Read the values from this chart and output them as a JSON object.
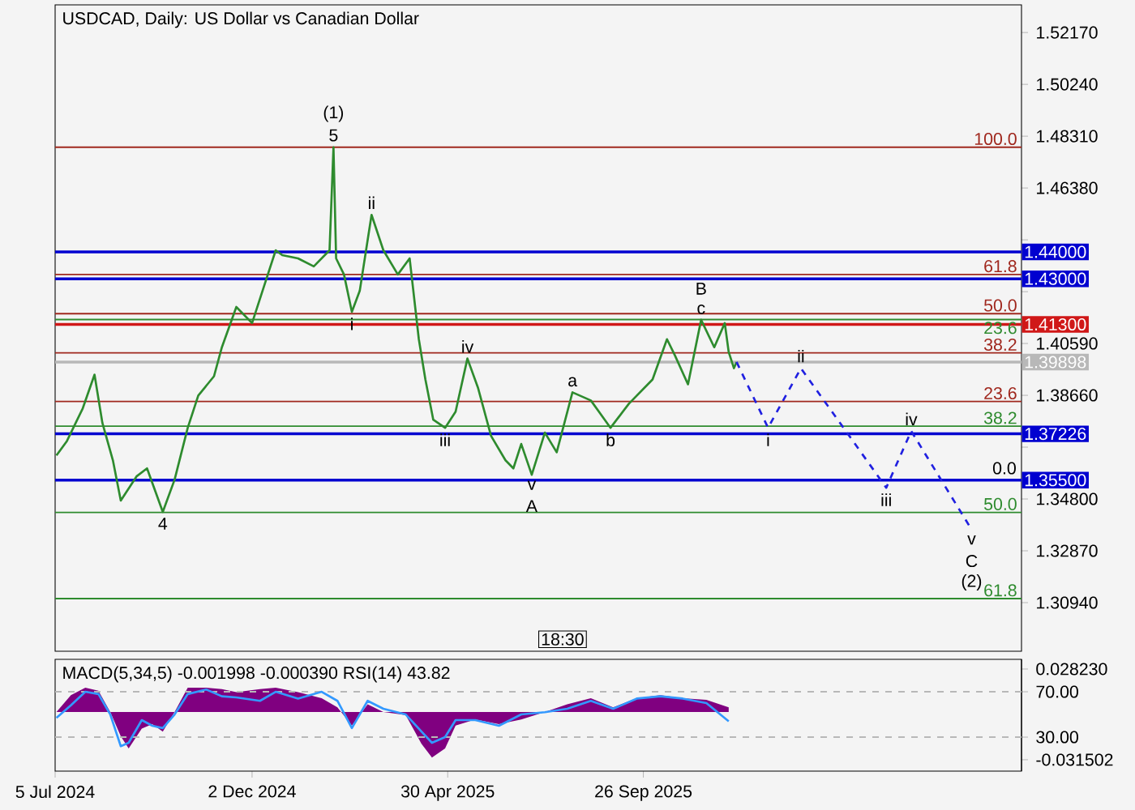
{
  "chart_data": [
    {
      "type": "line",
      "title": "USDCAD, Daily:  US Dollar vs Canadian Dollar",
      "xlim": [
        "2024-07-05",
        "2026-07-11"
      ],
      "ylim": [
        1.2913,
        1.532
      ],
      "yticks": [
        {
          "value": 1.5217,
          "label": "1.52170"
        },
        {
          "value": 1.5024,
          "label": "1.50240"
        },
        {
          "value": 1.4831,
          "label": "1.48310"
        },
        {
          "value": 1.4638,
          "label": "1.46380"
        },
        {
          "value": 1.4445,
          "label": null
        },
        {
          "value": 1.4252,
          "label": null
        },
        {
          "value": 1.4059,
          "label": "1.40590"
        },
        {
          "value": 1.3866,
          "label": "1.38660"
        },
        {
          "value": 1.3673,
          "label": null
        },
        {
          "value": 1.348,
          "label": "1.34800"
        },
        {
          "value": 1.3287,
          "label": "1.32870"
        },
        {
          "value": 1.3094,
          "label": "1.30940"
        }
      ],
      "tick_labels": "y",
      "x": [
        "2024-07-06",
        "2024-07-14",
        "2024-07-26",
        "2024-08-04",
        "2024-08-10",
        "2024-08-18",
        "2024-08-24",
        "2024-09-05",
        "2024-09-13",
        "2024-09-25",
        "2024-10-04",
        "2024-10-14",
        "2024-10-22",
        "2024-11-03",
        "2024-11-09",
        "2024-11-20",
        "2024-12-02",
        "2024-12-14",
        "2024-12-20",
        "2024-12-25",
        "2025-01-06",
        "2025-01-18",
        "2025-01-30",
        "2025-02-02",
        "2025-02-04",
        "2025-02-10",
        "2025-02-16",
        "2025-02-22",
        "2025-03-03",
        "2025-03-12",
        "2025-03-23",
        "2025-04-01",
        "2025-04-08",
        "2025-04-13",
        "2025-04-19",
        "2025-04-28",
        "2025-05-06",
        "2025-05-15",
        "2025-05-23",
        "2025-06-02",
        "2025-06-13",
        "2025-06-19",
        "2025-06-25",
        "2025-07-03",
        "2025-07-13",
        "2025-07-22",
        "2025-08-03",
        "2025-08-17",
        "2025-09-01",
        "2025-09-15",
        "2025-10-03",
        "2025-10-14",
        "2025-10-20",
        "2025-10-30",
        "2025-11-09",
        "2025-11-19",
        "2025-11-27",
        "2025-11-30",
        "2025-12-04",
        "2025-12-06"
      ],
      "series": [
        {
          "color": "#2e8b2e",
          "values": [
            1.3642,
            1.3696,
            1.3817,
            1.3943,
            1.3763,
            1.3624,
            1.3474,
            1.3564,
            1.3594,
            1.3432,
            1.3552,
            1.3745,
            1.3865,
            1.3937,
            1.4045,
            1.4195,
            1.4135,
            1.4316,
            1.4406,
            1.4388,
            1.4376,
            1.4346,
            1.4406,
            1.479,
            1.4376,
            1.4316,
            1.4177,
            1.4255,
            1.4538,
            1.4406,
            1.4316,
            1.4376,
            1.4075,
            1.3925,
            1.3775,
            1.3745,
            1.3805,
            1.4003,
            1.3895,
            1.3715,
            1.3624,
            1.3594,
            1.3685,
            1.357,
            1.3727,
            1.3654,
            1.3877,
            1.3847,
            1.3745,
            1.3835,
            1.3925,
            1.4075,
            1.4015,
            1.3907,
            1.4147,
            1.4045,
            1.4135,
            1.4027,
            1.3967,
            1.399
          ]
        },
        {
          "color": "#2020e0",
          "line_style": "dashed",
          "x": [
            "2025-12-06",
            "2025-12-30",
            "2026-01-24",
            "2026-03-30",
            "2026-04-18",
            "2026-06-03"
          ],
          "values": [
            1.399,
            1.3745,
            1.3967,
            1.3522,
            1.3733,
            1.3366
          ]
        }
      ],
      "ref_lines": [
        {
          "axis": "y",
          "value": 1.479,
          "color": "#a0281e"
        },
        {
          "axis": "y",
          "value": 1.4316,
          "color": "#a0281e"
        },
        {
          "axis": "y",
          "value": 1.417,
          "color": "#a0281e"
        },
        {
          "axis": "y",
          "value": 1.4024,
          "color": "#a0281e"
        },
        {
          "axis": "y",
          "value": 1.3843,
          "color": "#a0281e"
        },
        {
          "axis": "y",
          "value": 1.4148,
          "color": "#2e8b2e"
        },
        {
          "axis": "y",
          "value": 1.3751,
          "color": "#2e8b2e"
        },
        {
          "axis": "y",
          "value": 1.343,
          "color": "#2e8b2e"
        },
        {
          "axis": "y",
          "value": 1.3109,
          "color": "#2e8b2e"
        },
        {
          "axis": "y",
          "value": 1.44,
          "label": "1.44000",
          "color": "#0000d0"
        },
        {
          "axis": "y",
          "value": 1.43,
          "label": "1.43000",
          "color": "#0000d0"
        },
        {
          "axis": "y",
          "value": 1.413,
          "label": "1.41300",
          "color": "#d01818"
        },
        {
          "axis": "y",
          "value": 1.39898,
          "label": "1.39898",
          "color": "#b8b8b8"
        },
        {
          "axis": "y",
          "value": 1.37226,
          "label": "1.37226",
          "color": "#0000d0"
        },
        {
          "axis": "y",
          "value": 1.355,
          "label": "1.35500",
          "color": "#0000d0"
        }
      ],
      "annotations": [
        {
          "text": "5",
          "x": "2025-02-02",
          "y": 1.479
        },
        {
          "text": "(1)",
          "x": "2025-02-02",
          "y": 1.479
        },
        {
          "text": "4",
          "x": "2024-09-25",
          "y": 1.3432
        },
        {
          "text": "i",
          "x": "2025-02-16",
          "y": 1.4177
        },
        {
          "text": "ii",
          "x": "2025-03-03",
          "y": 1.4538
        },
        {
          "text": "iii",
          "x": "2025-04-28",
          "y": 1.3745
        },
        {
          "text": "iv",
          "x": "2025-05-15",
          "y": 1.4003
        },
        {
          "text": "v",
          "x": "2025-07-03",
          "y": 1.357
        },
        {
          "text": "A",
          "x": "2025-07-03",
          "y": 1.357
        },
        {
          "text": "a",
          "x": "2025-08-03",
          "y": 1.3877
        },
        {
          "text": "b",
          "x": "2025-09-01",
          "y": 1.3745
        },
        {
          "text": "c",
          "x": "2025-11-09",
          "y": 1.4147
        },
        {
          "text": "B",
          "x": "2025-11-09",
          "y": 1.4147
        },
        {
          "text": "i",
          "x": "2025-12-30",
          "y": 1.3745
        },
        {
          "text": "ii",
          "x": "2026-01-24",
          "y": 1.3967
        },
        {
          "text": "iii",
          "x": "2026-03-30",
          "y": 1.3522
        },
        {
          "text": "iv",
          "x": "2026-04-18",
          "y": 1.3733
        },
        {
          "text": "v",
          "x": "2026-06-03",
          "y": 1.3366
        },
        {
          "text": "C",
          "x": "2026-06-03",
          "y": 1.3366
        },
        {
          "text": "(2)",
          "x": "2026-06-03",
          "y": 1.3366
        },
        {
          "text": "0.0",
          "x": "2026-06-28",
          "y": 1.355
        },
        "100.0",
        "61.8",
        "50.0",
        "38.2",
        "23.6",
        "23.6",
        "38.2",
        "50.0",
        "61.8",
        "18:30"
      ]
    },
    {
      "type": "area",
      "title": "MACD(5,34,5) -0.001998 -0.000390 RSI(14) 43.82",
      "xlim": [
        "2024-07-05",
        "2026-07-11"
      ],
      "ylim": [
        -0.039,
        0.0346
      ],
      "y2lim": [
        0,
        98.6
      ],
      "xticks": [
        {
          "value": "2024-07-05",
          "label": "5 Jul 2024"
        },
        {
          "value": "2024-12-02",
          "label": "2 Dec 2024"
        },
        {
          "value": "2025-04-30",
          "label": "30 Apr 2025"
        },
        {
          "value": "2025-09-26",
          "label": "26 Sep 2025"
        }
      ],
      "yticks": [
        {
          "value": 0.02823,
          "label": "0.028230"
        },
        {
          "value": -0.031502,
          "label": "-0.031502"
        }
      ],
      "y2ticks": [
        {
          "value": 70,
          "label": "70.00"
        },
        {
          "value": 30,
          "label": "30.00"
        }
      ],
      "x": [
        "2024-07-06",
        "2024-07-17",
        "2024-07-28",
        "2024-08-07",
        "2024-08-16",
        "2024-08-24",
        "2024-08-30",
        "2024-09-09",
        "2024-09-17",
        "2024-09-25",
        "2024-10-04",
        "2024-10-14",
        "2024-10-28",
        "2024-11-09",
        "2024-11-20",
        "2024-12-08",
        "2024-12-20",
        "2025-01-06",
        "2025-01-24",
        "2025-02-05",
        "2025-02-16",
        "2025-02-28",
        "2025-03-12",
        "2025-03-29",
        "2025-04-10",
        "2025-04-18",
        "2025-04-28",
        "2025-05-06",
        "2025-05-21",
        "2025-06-08",
        "2025-06-25",
        "2025-07-13",
        "2025-07-30",
        "2025-08-17",
        "2025-09-03",
        "2025-09-21",
        "2025-10-09",
        "2025-10-26",
        "2025-11-13",
        "2025-11-30"
      ],
      "series": [
        {
          "color": "#800080",
          "values": [
            0,
            0.011,
            0.016,
            0.014,
            0,
            -0.016,
            -0.024,
            -0.011,
            -0.008,
            -0.013,
            0,
            0.016,
            0.016,
            0.015,
            0.013,
            0.015,
            0.016,
            0.013,
            0.009,
            0.003,
            -0.009,
            0.005,
            0,
            -0.002,
            -0.021,
            -0.03,
            -0.024,
            -0.009,
            -0.005,
            -0.008,
            -0.005,
            0,
            0.005,
            0.009,
            0.003,
            0.009,
            0.011,
            0.009,
            0.008,
            0.003
          ]
        },
        {
          "type": "line",
          "axis": "y2",
          "color": "#3399ff",
          "values": [
            47,
            58,
            70,
            68,
            50,
            22,
            25,
            45,
            40,
            38,
            50,
            68,
            72,
            66,
            65,
            62,
            70,
            64,
            70,
            62,
            38,
            62,
            55,
            50,
            35,
            25,
            30,
            45,
            45,
            40,
            50,
            52,
            55,
            62,
            55,
            64,
            66,
            64,
            60,
            44
          ]
        }
      ],
      "ref_lines": [
        {
          "axis": "y2",
          "value": 70,
          "color": "#b8b8b8",
          "line_style": "dashed"
        },
        {
          "axis": "y2",
          "value": 30,
          "color": "#b8b8b8",
          "line_style": "dashed"
        }
      ]
    }
  ]
}
